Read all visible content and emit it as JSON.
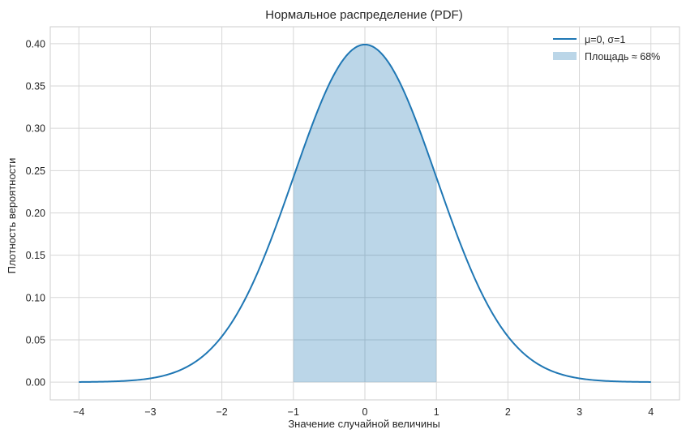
{
  "chart_data": {
    "type": "area",
    "title": "Нормальное распределение (PDF)",
    "xlabel": "Значение случайной величины",
    "ylabel": "Плотность вероятности",
    "xlim": [
      -4.4,
      4.4
    ],
    "ylim": [
      -0.021,
      0.42
    ],
    "x_ticks": [
      -4,
      -3,
      -2,
      -1,
      0,
      1,
      2,
      3,
      4
    ],
    "x_tick_labels": [
      "−4",
      "−3",
      "−2",
      "−1",
      "0",
      "1",
      "2",
      "3",
      "4"
    ],
    "y_ticks": [
      0.0,
      0.05,
      0.1,
      0.15,
      0.2,
      0.25,
      0.3,
      0.35,
      0.4
    ],
    "y_tick_labels": [
      "0.00",
      "0.05",
      "0.10",
      "0.15",
      "0.20",
      "0.25",
      "0.30",
      "0.35",
      "0.40"
    ],
    "grid": true,
    "legend_position": "top-right",
    "series": [
      {
        "name": "μ=0, σ=1",
        "kind": "line",
        "color": "#1f77b4",
        "x": [
          -4.0,
          -3.75,
          -3.5,
          -3.25,
          -3.0,
          -2.75,
          -2.5,
          -2.25,
          -2.0,
          -1.75,
          -1.5,
          -1.25,
          -1.0,
          -0.75,
          -0.5,
          -0.25,
          0.0,
          0.25,
          0.5,
          0.75,
          1.0,
          1.25,
          1.5,
          1.75,
          2.0,
          2.25,
          2.5,
          2.75,
          3.0,
          3.25,
          3.5,
          3.75,
          4.0
        ],
        "y": [
          0.0001,
          0.0004,
          0.0009,
          0.002,
          0.0044,
          0.0091,
          0.0175,
          0.0317,
          0.054,
          0.0863,
          0.1295,
          0.1826,
          0.242,
          0.3011,
          0.3521,
          0.3867,
          0.3989,
          0.3867,
          0.3521,
          0.3011,
          0.242,
          0.1826,
          0.1295,
          0.0863,
          0.054,
          0.0317,
          0.0175,
          0.0091,
          0.0044,
          0.002,
          0.0009,
          0.0004,
          0.0001
        ]
      },
      {
        "name": "Площадь ≈ 68%",
        "kind": "fill",
        "color": "#1f77b4",
        "opacity": 0.3,
        "x_range": [
          -1,
          1
        ]
      }
    ]
  }
}
